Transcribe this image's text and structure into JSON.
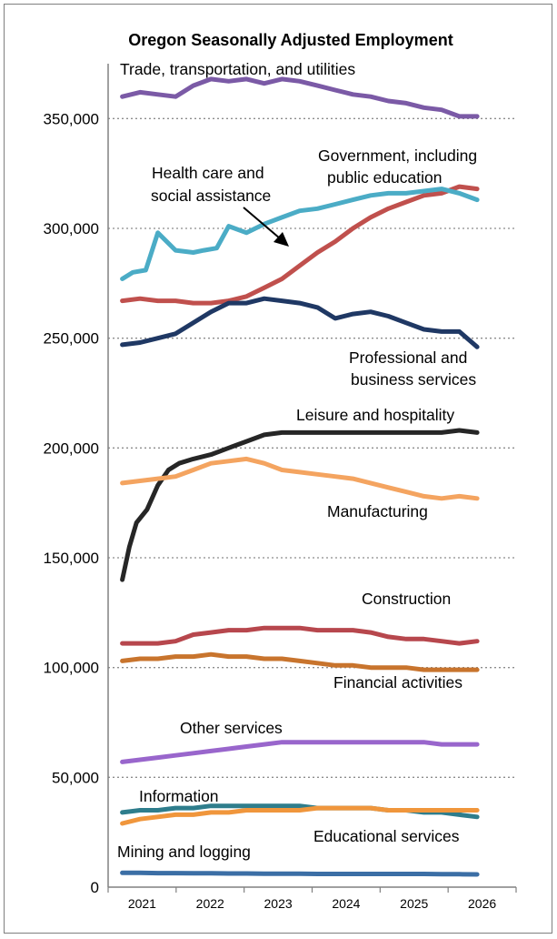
{
  "chart_data": {
    "type": "line",
    "title": "Oregon Seasonally Adjusted Employment",
    "xlabel": "",
    "ylabel": "",
    "ylim": [
      0,
      375000
    ],
    "yticks": [
      0,
      50000,
      100000,
      150000,
      200000,
      250000,
      300000,
      350000
    ],
    "ytick_labels": [
      "0",
      "50,000",
      "100,000",
      "150,000",
      "200,000",
      "250,000",
      "300,000",
      "350,000"
    ],
    "xlim": [
      2021.0,
      2026.0
    ],
    "xtick_labels": [
      "2021",
      "2022",
      "2023",
      "2024",
      "2025",
      "2026"
    ],
    "grid": "horizontal dotted",
    "legend": "none (direct labels)",
    "series": [
      {
        "name": "Trade, transportation, and utilities",
        "color": "#7b5aa6",
        "x": [
          2021.0,
          2021.25,
          2021.5,
          2021.75,
          2022.0,
          2022.25,
          2022.5,
          2022.75,
          2023.0,
          2023.25,
          2023.5,
          2023.75,
          2024.0,
          2024.25,
          2024.5,
          2024.75,
          2025.0,
          2025.25,
          2025.5,
          2025.75,
          2026.0
        ],
        "values": [
          360000,
          362000,
          361000,
          360000,
          365000,
          368000,
          367000,
          368000,
          366000,
          368000,
          367000,
          365000,
          363000,
          361000,
          360000,
          358000,
          357000,
          355000,
          354000,
          351000,
          351000
        ]
      },
      {
        "name": "Government, including public education",
        "color": "#c0504d",
        "x": [
          2021.0,
          2021.25,
          2021.5,
          2021.75,
          2022.0,
          2022.25,
          2022.5,
          2022.75,
          2023.0,
          2023.25,
          2023.5,
          2023.75,
          2024.0,
          2024.25,
          2024.5,
          2024.75,
          2025.0,
          2025.25,
          2025.5,
          2025.75,
          2026.0
        ],
        "values": [
          267000,
          268000,
          267000,
          267000,
          266000,
          266000,
          267000,
          269000,
          273000,
          277000,
          283000,
          289000,
          294000,
          300000,
          305000,
          309000,
          312000,
          315000,
          316000,
          319000,
          318000
        ]
      },
      {
        "name": "Health care and social assistance",
        "color": "#4bacc6",
        "x": [
          2021.0,
          2021.15,
          2021.33,
          2021.5,
          2021.75,
          2022.0,
          2022.15,
          2022.33,
          2022.5,
          2022.75,
          2023.0,
          2023.25,
          2023.5,
          2023.75,
          2024.0,
          2024.25,
          2024.5,
          2024.75,
          2025.0,
          2025.25,
          2025.5,
          2025.75,
          2026.0
        ],
        "values": [
          277000,
          280000,
          281000,
          298000,
          290000,
          289000,
          290000,
          291000,
          301000,
          298000,
          302000,
          305000,
          308000,
          309000,
          311000,
          313000,
          315000,
          316000,
          316000,
          317000,
          318000,
          316000,
          313000
        ]
      },
      {
        "name": "Professional and business services",
        "color": "#1f3864",
        "x": [
          2021.0,
          2021.25,
          2021.5,
          2021.75,
          2022.0,
          2022.25,
          2022.5,
          2022.75,
          2023.0,
          2023.25,
          2023.5,
          2023.75,
          2024.0,
          2024.25,
          2024.5,
          2024.75,
          2025.0,
          2025.25,
          2025.5,
          2025.75,
          2026.0
        ],
        "values": [
          247000,
          248000,
          250000,
          252000,
          257000,
          262000,
          266000,
          266000,
          268000,
          267000,
          266000,
          264000,
          259000,
          261000,
          262000,
          260000,
          257000,
          254000,
          253000,
          253000,
          246000
        ]
      },
      {
        "name": "Leisure and hospitality",
        "color": "#262626",
        "x": [
          2021.0,
          2021.1,
          2021.2,
          2021.35,
          2021.5,
          2021.65,
          2021.8,
          2022.0,
          2022.25,
          2022.5,
          2022.75,
          2023.0,
          2023.25,
          2023.5,
          2023.75,
          2024.0,
          2024.25,
          2024.5,
          2024.75,
          2025.0,
          2025.25,
          2025.5,
          2025.75,
          2026.0
        ],
        "values": [
          140000,
          155000,
          166000,
          172000,
          183000,
          190000,
          193000,
          195000,
          197000,
          200000,
          203000,
          206000,
          207000,
          207000,
          207000,
          207000,
          207000,
          207000,
          207000,
          207000,
          207000,
          207000,
          208000,
          207000
        ]
      },
      {
        "name": "Manufacturing",
        "color": "#f4a460",
        "x": [
          2021.0,
          2021.25,
          2021.5,
          2021.75,
          2022.0,
          2022.25,
          2022.5,
          2022.75,
          2023.0,
          2023.25,
          2023.5,
          2023.75,
          2024.0,
          2024.25,
          2024.5,
          2024.75,
          2025.0,
          2025.25,
          2025.5,
          2025.75,
          2026.0
        ],
        "values": [
          184000,
          185000,
          186000,
          187000,
          190000,
          193000,
          194000,
          195000,
          193000,
          190000,
          189000,
          188000,
          187000,
          186000,
          184000,
          182000,
          180000,
          178000,
          177000,
          178000,
          177000
        ]
      },
      {
        "name": "Construction",
        "color": "#b7474d",
        "x": [
          2021.0,
          2021.25,
          2021.5,
          2021.75,
          2022.0,
          2022.25,
          2022.5,
          2022.75,
          2023.0,
          2023.25,
          2023.5,
          2023.75,
          2024.0,
          2024.25,
          2024.5,
          2024.75,
          2025.0,
          2025.25,
          2025.5,
          2025.75,
          2026.0
        ],
        "values": [
          111000,
          111000,
          111000,
          112000,
          115000,
          116000,
          117000,
          117000,
          118000,
          118000,
          118000,
          117000,
          117000,
          117000,
          116000,
          114000,
          113000,
          113000,
          112000,
          111000,
          112000
        ]
      },
      {
        "name": "Financial activities",
        "color": "#c8742d",
        "x": [
          2021.0,
          2021.25,
          2021.5,
          2021.75,
          2022.0,
          2022.25,
          2022.5,
          2022.75,
          2023.0,
          2023.25,
          2023.5,
          2023.75,
          2024.0,
          2024.25,
          2024.5,
          2024.75,
          2025.0,
          2025.25,
          2025.5,
          2025.75,
          2026.0
        ],
        "values": [
          103000,
          104000,
          104000,
          105000,
          105000,
          106000,
          105000,
          105000,
          104000,
          104000,
          103000,
          102000,
          101000,
          101000,
          100000,
          100000,
          100000,
          99000,
          99000,
          99000,
          99000
        ]
      },
      {
        "name": "Other services",
        "color": "#9966cc",
        "x": [
          2021.0,
          2021.25,
          2021.5,
          2021.75,
          2022.0,
          2022.25,
          2022.5,
          2022.75,
          2023.0,
          2023.25,
          2023.5,
          2023.75,
          2024.0,
          2024.25,
          2024.5,
          2024.75,
          2025.0,
          2025.25,
          2025.5,
          2025.75,
          2026.0
        ],
        "values": [
          57000,
          58000,
          59000,
          60000,
          61000,
          62000,
          63000,
          64000,
          65000,
          66000,
          66000,
          66000,
          66000,
          66000,
          66000,
          66000,
          66000,
          66000,
          65000,
          65000,
          65000
        ]
      },
      {
        "name": "Information",
        "color": "#2e7d8c",
        "x": [
          2021.0,
          2021.25,
          2021.5,
          2021.75,
          2022.0,
          2022.25,
          2022.5,
          2022.75,
          2023.0,
          2023.25,
          2023.5,
          2023.75,
          2024.0,
          2024.25,
          2024.5,
          2024.75,
          2025.0,
          2025.25,
          2025.5,
          2025.75,
          2026.0
        ],
        "values": [
          34000,
          35000,
          35000,
          36000,
          36000,
          37000,
          37000,
          37000,
          37000,
          37000,
          37000,
          36000,
          36000,
          36000,
          36000,
          35000,
          35000,
          34000,
          34000,
          33000,
          32000
        ]
      },
      {
        "name": "Educational services",
        "color": "#f0963c",
        "x": [
          2021.0,
          2021.25,
          2021.5,
          2021.75,
          2022.0,
          2022.25,
          2022.5,
          2022.75,
          2023.0,
          2023.25,
          2023.5,
          2023.75,
          2024.0,
          2024.25,
          2024.5,
          2024.75,
          2025.0,
          2025.25,
          2025.5,
          2025.75,
          2026.0
        ],
        "values": [
          29000,
          31000,
          32000,
          33000,
          33000,
          34000,
          34000,
          35000,
          35000,
          35000,
          35000,
          36000,
          36000,
          36000,
          36000,
          35000,
          35000,
          35000,
          35000,
          35000,
          35000
        ]
      },
      {
        "name": "Mining and logging",
        "color": "#3b6ea5",
        "x": [
          2021.0,
          2021.25,
          2021.5,
          2021.75,
          2022.0,
          2022.25,
          2022.5,
          2022.75,
          2023.0,
          2023.25,
          2023.5,
          2023.75,
          2024.0,
          2024.25,
          2024.5,
          2024.75,
          2025.0,
          2025.25,
          2025.5,
          2025.75,
          2026.0
        ],
        "values": [
          6500,
          6500,
          6400,
          6400,
          6300,
          6300,
          6200,
          6200,
          6100,
          6100,
          6100,
          6000,
          6000,
          6000,
          6000,
          6000,
          6000,
          6000,
          5900,
          5900,
          5800
        ]
      }
    ]
  }
}
